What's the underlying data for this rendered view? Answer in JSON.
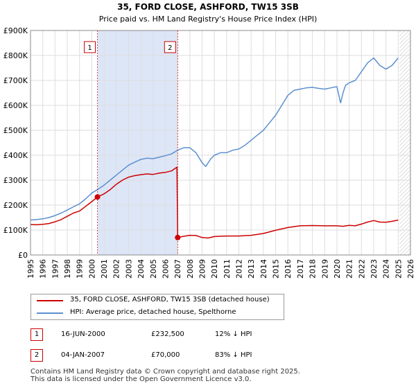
{
  "chart_data": {
    "type": "line",
    "title": "35, FORD CLOSE, ASHFORD, TW15 3SB",
    "subtitle": "Price paid vs. HM Land Registry's House Price Index (HPI)",
    "xlabel": "",
    "ylabel": "",
    "xlim": [
      1995,
      2026
    ],
    "ylim": [
      0,
      900000
    ],
    "y_ticks": [
      0,
      100000,
      200000,
      300000,
      400000,
      500000,
      600000,
      700000,
      800000,
      900000
    ],
    "y_tick_labels": [
      "£0",
      "£100K",
      "£200K",
      "£300K",
      "£400K",
      "£500K",
      "£600K",
      "£700K",
      "£800K",
      "£900K"
    ],
    "x_ticks": [
      1995,
      1996,
      1997,
      1998,
      1999,
      2000,
      2001,
      2002,
      2003,
      2004,
      2005,
      2006,
      2007,
      2008,
      2009,
      2010,
      2011,
      2012,
      2013,
      2014,
      2015,
      2016,
      2017,
      2018,
      2019,
      2020,
      2021,
      2022,
      2023,
      2024,
      2025,
      2026
    ],
    "grid": true,
    "ownership_shade": [
      2000.46,
      2007.01
    ],
    "future_hatch_from": 2025.1,
    "series": [
      {
        "name": "35, FORD CLOSE, ASHFORD, TW15 3SB (detached house)",
        "color": "#cc0000",
        "x": [
          1995.0,
          1995.5,
          1996.0,
          1996.5,
          1997.0,
          1997.5,
          1998.0,
          1998.5,
          1999.0,
          1999.5,
          2000.0,
          2000.46,
          2001.0,
          2001.5,
          2002.0,
          2002.5,
          2003.0,
          2003.5,
          2004.0,
          2004.5,
          2005.0,
          2005.5,
          2006.0,
          2006.5,
          2006.95,
          2007.01,
          2007.5,
          2008.0,
          2008.5,
          2009.0,
          2009.5,
          2010.0,
          2011.0,
          2012.0,
          2013.0,
          2014.0,
          2015.0,
          2016.0,
          2017.0,
          2018.0,
          2019.0,
          2020.0,
          2020.5,
          2021.0,
          2021.5,
          2022.0,
          2022.5,
          2023.0,
          2023.5,
          2024.0,
          2024.5,
          2025.0
        ],
        "values": [
          122000,
          121000,
          123000,
          126000,
          133000,
          142000,
          155000,
          168000,
          176000,
          195000,
          214000,
          232500,
          245000,
          262000,
          283000,
          300000,
          312000,
          318000,
          322000,
          325000,
          323000,
          328000,
          331000,
          337000,
          352000,
          70000,
          75000,
          79000,
          78000,
          70000,
          68000,
          74000,
          76000,
          76000,
          79000,
          86000,
          99000,
          110000,
          117000,
          118000,
          117000,
          117000,
          115000,
          119000,
          117000,
          124000,
          132000,
          138000,
          132000,
          131000,
          135000,
          140000
        ]
      },
      {
        "name": "HPI: Average price, detached house, Spelthorne",
        "color": "#5b8fd0",
        "x": [
          1995.0,
          1995.5,
          1996.0,
          1996.5,
          1997.0,
          1997.5,
          1998.0,
          1998.5,
          1999.0,
          1999.5,
          2000.0,
          2000.5,
          2001.0,
          2001.5,
          2002.0,
          2002.5,
          2003.0,
          2003.5,
          2004.0,
          2004.5,
          2005.0,
          2005.5,
          2006.0,
          2006.5,
          2007.0,
          2007.5,
          2008.0,
          2008.5,
          2009.0,
          2009.3,
          2009.7,
          2010.0,
          2010.5,
          2011.0,
          2011.5,
          2012.0,
          2012.5,
          2013.0,
          2013.5,
          2014.0,
          2014.5,
          2015.0,
          2015.5,
          2016.0,
          2016.5,
          2017.0,
          2017.5,
          2018.0,
          2018.5,
          2019.0,
          2019.5,
          2020.0,
          2020.3,
          2020.5,
          2020.7,
          2021.0,
          2021.5,
          2022.0,
          2022.5,
          2023.0,
          2023.5,
          2024.0,
          2024.5,
          2025.0
        ],
        "values": [
          140000,
          142000,
          145000,
          150000,
          158000,
          168000,
          180000,
          193000,
          205000,
          225000,
          248000,
          263000,
          280000,
          300000,
          320000,
          340000,
          360000,
          372000,
          383000,
          388000,
          386000,
          392000,
          398000,
          405000,
          420000,
          430000,
          430000,
          410000,
          370000,
          355000,
          385000,
          400000,
          410000,
          410000,
          420000,
          425000,
          440000,
          460000,
          480000,
          500000,
          530000,
          560000,
          600000,
          640000,
          660000,
          665000,
          670000,
          672000,
          668000,
          665000,
          670000,
          675000,
          610000,
          650000,
          680000,
          690000,
          700000,
          735000,
          770000,
          790000,
          760000,
          745000,
          760000,
          790000
        ]
      }
    ],
    "markers": [
      {
        "label": "1",
        "x": 2000.46,
        "y": 232500
      },
      {
        "label": "2",
        "x": 2007.01,
        "y": 70000
      }
    ],
    "legend_position": "below"
  },
  "legend": {
    "property": "35, FORD CLOSE, ASHFORD, TW15 3SB (detached house)",
    "hpi": "HPI: Average price, detached house, Spelthorne"
  },
  "transactions": [
    {
      "num": "1",
      "date": "16-JUN-2000",
      "price": "£232,500",
      "hpi": "12% ↓ HPI"
    },
    {
      "num": "2",
      "date": "04-JAN-2007",
      "price": "£70,000",
      "hpi": "83% ↓ HPI"
    }
  ],
  "footer": {
    "line1": "Contains HM Land Registry data © Crown copyright and database right 2025.",
    "line2": "This data is licensed under the Open Government Licence v3.0."
  },
  "colors": {
    "property": "#cc0000",
    "hpi": "#5b8fd0",
    "shade": "#dde6f7"
  }
}
